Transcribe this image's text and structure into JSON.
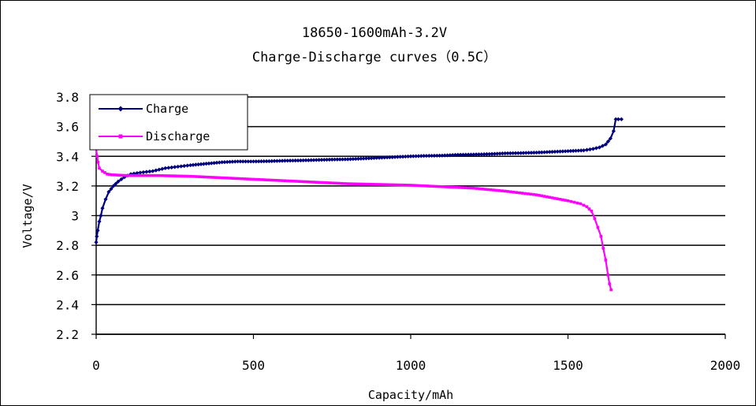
{
  "chart_data": {
    "type": "line",
    "title": "18650-1600mAh-3.2V",
    "subtitle": "Charge-Discharge curves（0.5C）",
    "xlabel": "Capacity/mAh",
    "ylabel": "Voltage/V",
    "xlim": [
      0,
      2000
    ],
    "ylim": [
      2.2,
      3.8
    ],
    "x_ticks": [
      "0",
      "500",
      "1000",
      "1500",
      "2000"
    ],
    "y_ticks": [
      "2.2",
      "2.4",
      "2.6",
      "2.8",
      "3",
      "3.2",
      "3.4",
      "3.6",
      "3.8"
    ],
    "grid": "horizontal",
    "legend_position": "top-left",
    "series": [
      {
        "name": "Charge",
        "color": "#00007f",
        "marker": "diamond",
        "points": [
          [
            0,
            2.82
          ],
          [
            2,
            2.86
          ],
          [
            5,
            2.9
          ],
          [
            10,
            2.96
          ],
          [
            15,
            3.0
          ],
          [
            20,
            3.05
          ],
          [
            30,
            3.11
          ],
          [
            40,
            3.16
          ],
          [
            55,
            3.2
          ],
          [
            70,
            3.23
          ],
          [
            90,
            3.26
          ],
          [
            110,
            3.28
          ],
          [
            140,
            3.29
          ],
          [
            180,
            3.3
          ],
          [
            220,
            3.32
          ],
          [
            260,
            3.33
          ],
          [
            300,
            3.34
          ],
          [
            350,
            3.35
          ],
          [
            400,
            3.36
          ],
          [
            450,
            3.365
          ],
          [
            500,
            3.365
          ],
          [
            550,
            3.367
          ],
          [
            600,
            3.37
          ],
          [
            650,
            3.372
          ],
          [
            700,
            3.375
          ],
          [
            750,
            3.378
          ],
          [
            800,
            3.38
          ],
          [
            850,
            3.385
          ],
          [
            900,
            3.39
          ],
          [
            950,
            3.395
          ],
          [
            1000,
            3.4
          ],
          [
            1050,
            3.403
          ],
          [
            1100,
            3.405
          ],
          [
            1150,
            3.41
          ],
          [
            1200,
            3.412
          ],
          [
            1250,
            3.415
          ],
          [
            1300,
            3.42
          ],
          [
            1350,
            3.422
          ],
          [
            1400,
            3.425
          ],
          [
            1450,
            3.43
          ],
          [
            1500,
            3.435
          ],
          [
            1550,
            3.44
          ],
          [
            1580,
            3.45
          ],
          [
            1600,
            3.46
          ],
          [
            1620,
            3.48
          ],
          [
            1635,
            3.52
          ],
          [
            1645,
            3.57
          ],
          [
            1652,
            3.65
          ],
          [
            1660,
            3.65
          ],
          [
            1670,
            3.65
          ]
        ]
      },
      {
        "name": "Discharge",
        "color": "#ff00ff",
        "marker": "square",
        "points": [
          [
            0,
            3.45
          ],
          [
            3,
            3.4
          ],
          [
            6,
            3.36
          ],
          [
            10,
            3.32
          ],
          [
            20,
            3.3
          ],
          [
            35,
            3.28
          ],
          [
            50,
            3.275
          ],
          [
            100,
            3.27
          ],
          [
            200,
            3.27
          ],
          [
            300,
            3.265
          ],
          [
            400,
            3.255
          ],
          [
            500,
            3.245
          ],
          [
            600,
            3.235
          ],
          [
            700,
            3.225
          ],
          [
            800,
            3.215
          ],
          [
            900,
            3.21
          ],
          [
            1000,
            3.205
          ],
          [
            1100,
            3.195
          ],
          [
            1200,
            3.185
          ],
          [
            1300,
            3.165
          ],
          [
            1400,
            3.14
          ],
          [
            1450,
            3.12
          ],
          [
            1500,
            3.1
          ],
          [
            1540,
            3.08
          ],
          [
            1560,
            3.06
          ],
          [
            1575,
            3.03
          ],
          [
            1585,
            2.98
          ],
          [
            1595,
            2.92
          ],
          [
            1605,
            2.86
          ],
          [
            1612,
            2.78
          ],
          [
            1620,
            2.7
          ],
          [
            1627,
            2.6
          ],
          [
            1632,
            2.54
          ],
          [
            1637,
            2.5
          ]
        ]
      }
    ]
  }
}
